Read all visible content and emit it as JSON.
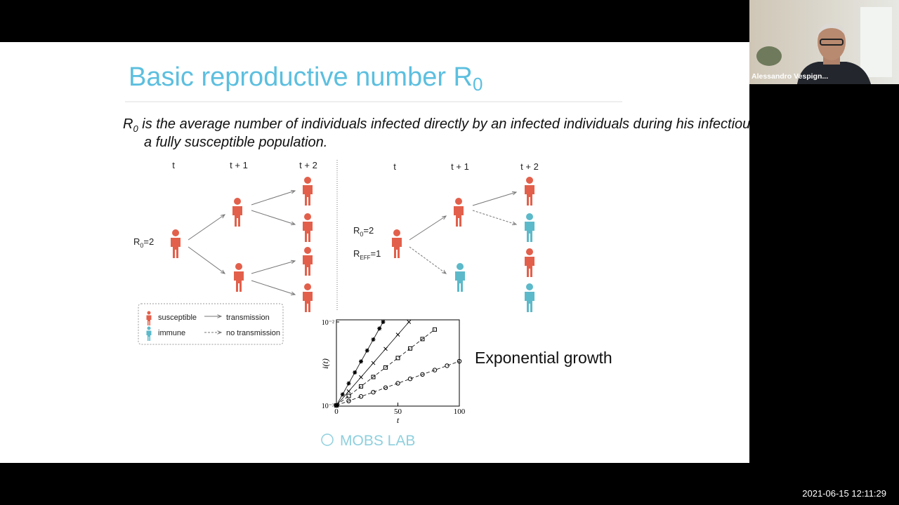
{
  "meeting": {
    "participant_name": "Alessandro Vespign...",
    "timestamp": "2021-06-15 12:11:29"
  },
  "slide": {
    "title": "Basic reproductive number R",
    "title_subscript": "0",
    "definition": {
      "symbol": "R",
      "symbol_subscript": "0",
      "line1": " is the average number of individuals infected directly by an infected individuals during his infectious period, in",
      "line2": "a fully susceptible population."
    },
    "diagram_left": {
      "time_labels": [
        "t",
        "t + 1",
        "t + 2"
      ],
      "r0_label": "R",
      "r0_subscript": "0",
      "r0_value": "=2"
    },
    "diagram_right": {
      "time_labels": [
        "t",
        "t + 1",
        "t + 2"
      ],
      "r0_label": "R",
      "r0_subscript": "0",
      "r0_value": "=2",
      "reff_label": "R",
      "reff_subscript": "EFF",
      "reff_value": "=1"
    },
    "legend": {
      "susceptible": "susceptible",
      "transmission": "transmission",
      "immune": "immune",
      "no_transmission": "no transmission"
    },
    "caption": "Exponential growth",
    "logo": "MOBS LAB"
  },
  "chart_data": {
    "type": "scatter",
    "xlabel": "t",
    "ylabel": "i(t)",
    "xlim": [
      0,
      100
    ],
    "ylim": [
      0.001,
      0.01
    ],
    "log_y": true,
    "xticks": [
      0,
      50,
      100
    ],
    "yticks": [
      {
        "value": 0.001,
        "label": "10⁻³"
      },
      {
        "value": 0.01,
        "label": "10⁻²"
      }
    ],
    "series": [
      {
        "marker": "star",
        "color": "#000000",
        "line_style": "solid",
        "x": [
          0,
          5,
          10,
          15,
          20,
          25,
          30,
          35,
          38
        ],
        "values": [
          0.001,
          0.001354,
          0.001833,
          0.002483,
          0.00336,
          0.00455,
          0.00616,
          0.00834,
          0.01
        ]
      },
      {
        "marker": "cross",
        "color": "#000000",
        "line_style": "solid",
        "x": [
          0,
          10,
          20,
          30,
          40,
          50,
          59
        ],
        "values": [
          0.001,
          0.001477,
          0.00218,
          0.00322,
          0.00476,
          0.00704,
          0.01
        ]
      },
      {
        "marker": "square",
        "color": "#000000",
        "line_style": "dashed",
        "x": [
          0,
          10,
          20,
          30,
          40,
          50,
          60,
          70,
          80
        ],
        "values": [
          0.001,
          0.0013,
          0.00169,
          0.00219,
          0.00285,
          0.0037,
          0.00481,
          0.00624,
          0.00811
        ]
      },
      {
        "marker": "circle",
        "color": "#000000",
        "line_style": "dashed",
        "x": [
          0,
          10,
          20,
          30,
          40,
          50,
          60,
          70,
          80,
          90,
          100
        ],
        "values": [
          0.001,
          0.00113,
          0.00128,
          0.00144,
          0.00163,
          0.00184,
          0.00208,
          0.00235,
          0.00265,
          0.00299,
          0.00338
        ]
      }
    ]
  }
}
